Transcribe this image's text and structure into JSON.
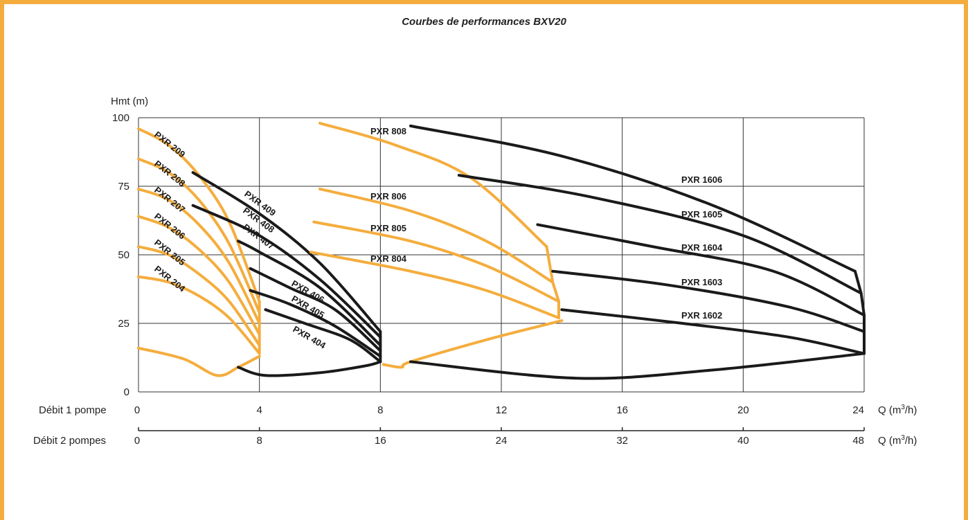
{
  "chart_data": {
    "type": "line",
    "title": "Courbes de performances BXV20",
    "ylabel": "Hmt (m)",
    "ylim": [
      0,
      100
    ],
    "y_ticks": [
      "0",
      "25",
      "50",
      "75",
      "100"
    ],
    "x_axis_1": {
      "label": "Débit 1 pompe",
      "unit_prefix": "Q (m",
      "unit_sup": "3",
      "unit_suffix": "/h)",
      "ticks": [
        "0",
        "4",
        "8",
        "12",
        "16",
        "20",
        "24"
      ],
      "xlim": [
        0,
        24
      ]
    },
    "x_axis_2": {
      "label": "Débit 2 pompes",
      "unit_prefix": "Q (m",
      "unit_sup": "3",
      "unit_suffix": "/h)",
      "ticks": [
        "0",
        "8",
        "16",
        "24",
        "32",
        "40",
        "48"
      ],
      "xlim": [
        0,
        48
      ]
    },
    "grid": true,
    "colors": {
      "orange": "#f4ad3d",
      "black": "#1a1a1a"
    },
    "series": [
      {
        "name": "PXR 209",
        "color": "orange",
        "points": [
          [
            0,
            96
          ],
          [
            1,
            90
          ],
          [
            2,
            79
          ],
          [
            3,
            62
          ],
          [
            4,
            33
          ]
        ]
      },
      {
        "name": "PXR 208",
        "color": "orange",
        "points": [
          [
            0,
            85
          ],
          [
            1,
            80
          ],
          [
            2,
            70
          ],
          [
            3,
            54
          ],
          [
            4,
            29
          ]
        ]
      },
      {
        "name": "PXR 207",
        "color": "orange",
        "points": [
          [
            0,
            74
          ],
          [
            1,
            70
          ],
          [
            2,
            61
          ],
          [
            3,
            47
          ],
          [
            4,
            25
          ]
        ]
      },
      {
        "name": "PXR 206",
        "color": "orange",
        "points": [
          [
            0,
            64
          ],
          [
            1,
            60
          ],
          [
            2,
            52
          ],
          [
            3,
            40
          ],
          [
            4,
            21
          ]
        ]
      },
      {
        "name": "PXR 205",
        "color": "orange",
        "points": [
          [
            0,
            53
          ],
          [
            1,
            50
          ],
          [
            2,
            43
          ],
          [
            3,
            33
          ],
          [
            4,
            17
          ]
        ]
      },
      {
        "name": "PXR 204",
        "color": "orange",
        "points": [
          [
            0,
            42
          ],
          [
            1,
            40
          ],
          [
            2,
            35
          ],
          [
            3,
            27
          ],
          [
            4,
            14
          ]
        ]
      },
      {
        "name": "PXR 409",
        "color": "black",
        "points": [
          [
            1.8,
            80
          ],
          [
            4,
            65
          ],
          [
            6,
            47
          ],
          [
            8,
            22
          ]
        ]
      },
      {
        "name": "PXR 408",
        "color": "black",
        "points": [
          [
            1.8,
            68
          ],
          [
            4,
            57
          ],
          [
            6,
            41
          ],
          [
            8,
            20
          ]
        ]
      },
      {
        "name": "PXR 407",
        "color": "black",
        "points": [
          [
            3.3,
            55
          ],
          [
            4,
            51
          ],
          [
            6,
            38
          ],
          [
            8,
            17
          ]
        ]
      },
      {
        "name": "PXR 406",
        "color": "black",
        "points": [
          [
            3.7,
            45
          ],
          [
            5,
            38
          ],
          [
            6.5,
            30
          ],
          [
            8,
            15
          ]
        ]
      },
      {
        "name": "PXR 405",
        "color": "black",
        "points": [
          [
            3.7,
            37
          ],
          [
            5,
            32
          ],
          [
            6.5,
            24
          ],
          [
            8,
            13
          ]
        ]
      },
      {
        "name": "PXR 404",
        "color": "black",
        "points": [
          [
            4.2,
            30
          ],
          [
            5.5,
            25
          ],
          [
            7,
            19
          ],
          [
            8,
            11
          ]
        ]
      },
      {
        "name": "PXR 808",
        "color": "orange",
        "points": [
          [
            6,
            98
          ],
          [
            8.5,
            90
          ],
          [
            11,
            78
          ],
          [
            13.5,
            53
          ]
        ]
      },
      {
        "name": "PXR 806",
        "color": "orange",
        "points": [
          [
            6,
            74
          ],
          [
            9,
            66
          ],
          [
            11.5,
            55
          ],
          [
            13.7,
            40
          ]
        ]
      },
      {
        "name": "PXR 805",
        "color": "orange",
        "points": [
          [
            5.8,
            62
          ],
          [
            9,
            55
          ],
          [
            11.5,
            46
          ],
          [
            13.9,
            33
          ]
        ]
      },
      {
        "name": "PXR 804",
        "color": "orange",
        "points": [
          [
            5.7,
            51
          ],
          [
            9,
            44
          ],
          [
            11.5,
            37
          ],
          [
            13.9,
            27
          ]
        ]
      },
      {
        "name": "PXR 1606",
        "color": "black",
        "points": [
          [
            9,
            97
          ],
          [
            14,
            86
          ],
          [
            19,
            68
          ],
          [
            23.7,
            44
          ]
        ]
      },
      {
        "name": "PXR 1605",
        "color": "black",
        "points": [
          [
            10.6,
            79
          ],
          [
            15,
            71
          ],
          [
            20,
            57
          ],
          [
            23.9,
            36
          ]
        ]
      },
      {
        "name": "PXR 1604",
        "color": "black",
        "points": [
          [
            13.2,
            61
          ],
          [
            17,
            53
          ],
          [
            21,
            44
          ],
          [
            24,
            28
          ]
        ]
      },
      {
        "name": "PXR 1603",
        "color": "black",
        "points": [
          [
            13.7,
            44
          ],
          [
            17.5,
            39
          ],
          [
            21.5,
            31
          ],
          [
            24,
            22
          ]
        ]
      },
      {
        "name": "PXR 1602",
        "color": "black",
        "points": [
          [
            14,
            30
          ],
          [
            18,
            25
          ],
          [
            21.5,
            20
          ],
          [
            24,
            14
          ]
        ]
      }
    ],
    "efficiency_envelopes": [
      {
        "color": "orange",
        "points": [
          [
            0,
            16
          ],
          [
            1.5,
            12
          ],
          [
            2.6,
            6
          ],
          [
            3.3,
            9
          ],
          [
            4,
            13
          ]
        ]
      },
      {
        "color": "black",
        "points": [
          [
            3.3,
            9
          ],
          [
            4.2,
            6
          ],
          [
            6,
            7
          ],
          [
            7.5,
            9.5
          ],
          [
            8,
            11
          ]
        ]
      },
      {
        "color": "orange",
        "points": [
          [
            8.1,
            10
          ],
          [
            8.7,
            9
          ],
          [
            9,
            11
          ],
          [
            11.5,
            19
          ],
          [
            14,
            26
          ]
        ]
      },
      {
        "color": "black",
        "points": [
          [
            9,
            11
          ],
          [
            14.5,
            5
          ],
          [
            19,
            8
          ],
          [
            24,
            14
          ]
        ]
      }
    ]
  }
}
